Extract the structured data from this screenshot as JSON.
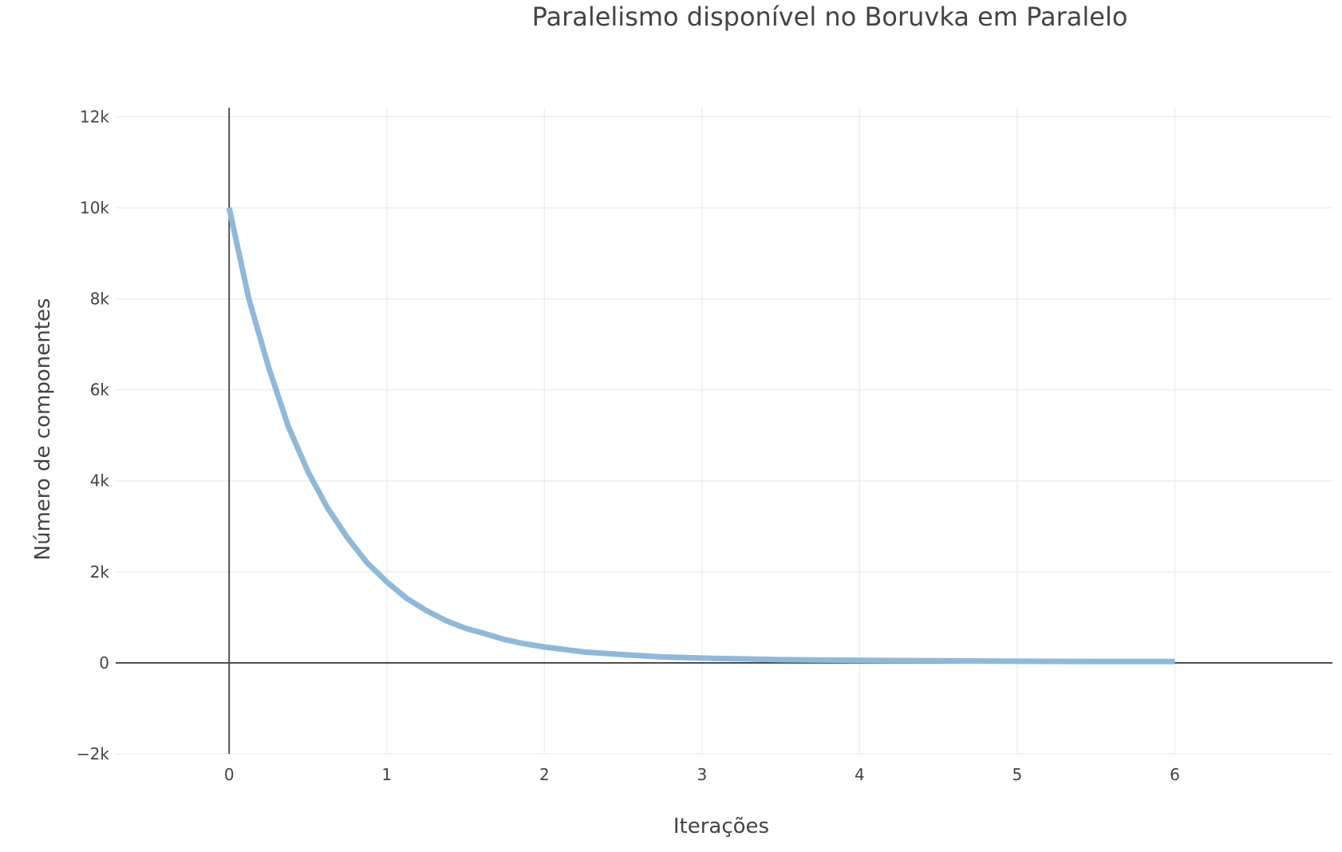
{
  "chart_data": {
    "type": "line",
    "title": "Paralelismo disponível no Boruvka em Paralelo",
    "xlabel": "Iterações",
    "ylabel": "Número de componentes",
    "xlim": [
      -0.72,
      7.0
    ],
    "ylim": [
      -2000,
      12200
    ],
    "x_ticks": [
      0,
      1,
      2,
      3,
      4,
      5,
      6
    ],
    "x_tick_labels": [
      "0",
      "1",
      "2",
      "3",
      "4",
      "5",
      "6"
    ],
    "y_ticks": [
      -2000,
      0,
      2000,
      4000,
      6000,
      8000,
      10000,
      12000
    ],
    "y_tick_labels": [
      "−2k",
      "0",
      "2k",
      "4k",
      "6k",
      "8k",
      "10k",
      "12k"
    ],
    "grid": true,
    "line_color": "#8fb9db",
    "series": [
      {
        "x": [
          0,
          0.125,
          0.25,
          0.375,
          0.5,
          0.625,
          0.75,
          0.875,
          1.0,
          1.125,
          1.25,
          1.375,
          1.5,
          1.625,
          1.75,
          1.875,
          2.0,
          2.25,
          2.5,
          2.75,
          3.0,
          3.5,
          4.0,
          4.5,
          5.0,
          5.5,
          6.0
        ],
        "y": [
          10000,
          8000,
          6500,
          5200,
          4200,
          3400,
          2750,
          2200,
          1780,
          1420,
          1150,
          930,
          760,
          640,
          510,
          420,
          350,
          240,
          180,
          130,
          105,
          70,
          55,
          45,
          35,
          30,
          30
        ]
      }
    ]
  }
}
